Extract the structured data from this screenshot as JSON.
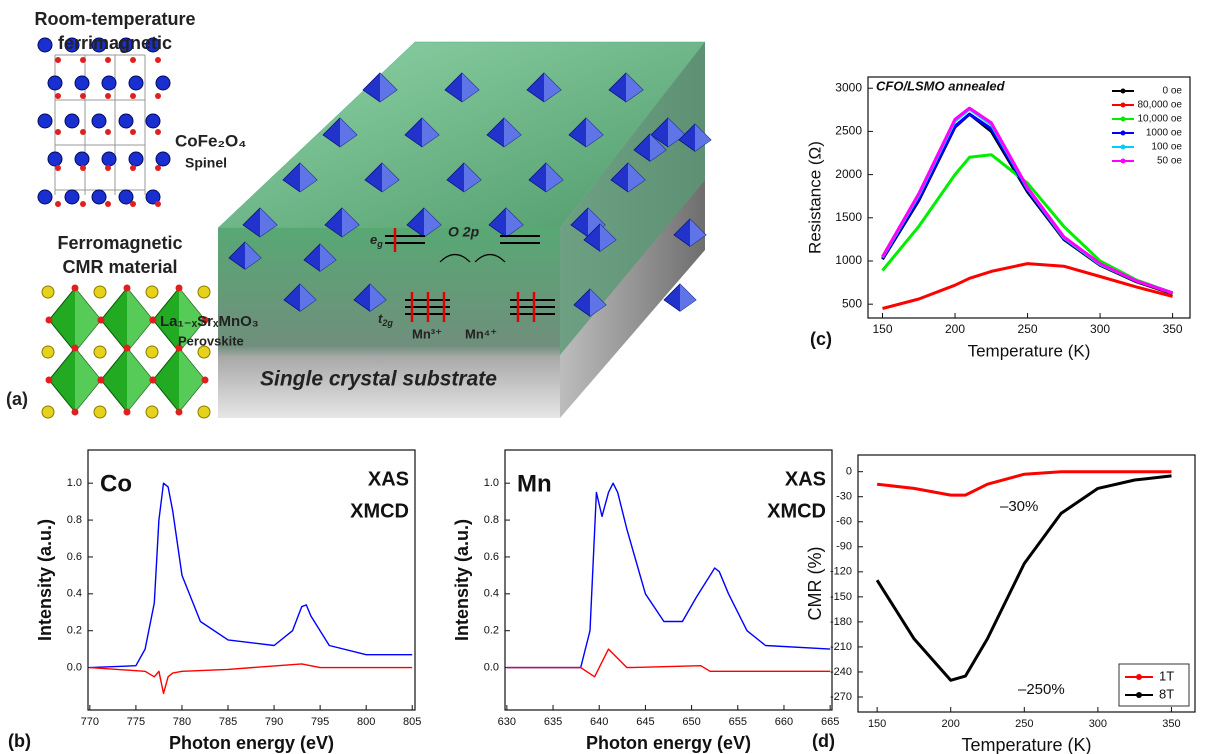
{
  "diagram": {
    "panel_label": "(a)",
    "spinel": {
      "title": [
        "Room-temperature",
        "ferrimagnetic"
      ],
      "formula": "CoFe₂O₄",
      "name": "Spinel"
    },
    "perovskite": {
      "title": [
        "Ferromagnetic",
        "CMR material"
      ],
      "formula": "La₁₋ₓSrₓMnO₃",
      "name": "Perovskite"
    },
    "substrate": "Single crystal substrate",
    "band": {
      "eg": [
        "e",
        "g"
      ],
      "t2g": [
        "t",
        "2g"
      ],
      "o2p": "O 2p",
      "mn3": "Mn³⁺",
      "mn4": "Mn⁴⁺"
    }
  },
  "chart_data": [
    {
      "type": "line",
      "panel_label": "(b)",
      "annotations": [
        "Co"
      ],
      "x_label": "Photon energy (eV)",
      "y_label": "Intensity (a.u.)",
      "xlim": [
        769.8,
        805.3
      ],
      "ylim": [
        -0.23,
        1.18
      ],
      "xticks": [
        770,
        775,
        780,
        785,
        790,
        795,
        800,
        805
      ],
      "yticks": [
        {
          "value": 0,
          "label": "0.0"
        },
        0.2,
        0.4,
        0.6,
        0.8,
        {
          "value": 1,
          "label": "1.0"
        }
      ],
      "legend": "upper right",
      "series": [
        {
          "name": "XAS",
          "color": "#0000ff",
          "x": [
            770,
            775,
            776,
            777,
            777.5,
            778,
            778.5,
            779,
            780,
            782,
            785,
            790,
            792,
            793,
            793.5,
            794,
            796,
            800,
            805
          ],
          "values": [
            0,
            0.01,
            0.1,
            0.35,
            0.8,
            1.0,
            0.98,
            0.85,
            0.5,
            0.25,
            0.15,
            0.12,
            0.2,
            0.33,
            0.34,
            0.28,
            0.12,
            0.07,
            0.07
          ]
        },
        {
          "name": "XMCD",
          "color": "#ff0000",
          "x": [
            770,
            776,
            777,
            777.5,
            778,
            778.5,
            779,
            780,
            785,
            793,
            795,
            805
          ],
          "values": [
            0,
            -0.02,
            -0.05,
            -0.02,
            -0.14,
            -0.05,
            -0.03,
            -0.02,
            -0.01,
            0.02,
            0,
            0
          ]
        }
      ]
    },
    {
      "type": "line",
      "annotations": [
        "Mn"
      ],
      "x_label": "Photon energy (eV)",
      "y_label": "Intensity (a.u.)",
      "xlim": [
        629.8,
        665.2
      ],
      "ylim": [
        -0.23,
        1.18
      ],
      "xticks": [
        630,
        635,
        640,
        645,
        650,
        655,
        660,
        665
      ],
      "yticks": [
        {
          "value": 0,
          "label": "0.0"
        },
        0.2,
        0.4,
        0.6,
        0.8,
        {
          "value": 1,
          "label": "1.0"
        }
      ],
      "legend": "upper right",
      "series": [
        {
          "name": "XAS",
          "color": "#0000ff",
          "x": [
            630,
            638,
            639,
            639.7,
            640.3,
            641,
            641.5,
            642,
            643,
            645,
            647,
            649,
            650.5,
            651,
            652,
            652.5,
            653,
            654,
            656,
            658,
            665
          ],
          "values": [
            0,
            0,
            0.2,
            0.95,
            0.82,
            0.95,
            1.0,
            0.95,
            0.75,
            0.4,
            0.25,
            0.25,
            0.38,
            0.42,
            0.5,
            0.54,
            0.52,
            0.4,
            0.2,
            0.12,
            0.1
          ]
        },
        {
          "name": "XMCD",
          "color": "#ff0000",
          "x": [
            630,
            638,
            639.5,
            640,
            641,
            642,
            643,
            651,
            652,
            665
          ],
          "values": [
            0,
            0,
            -0.05,
            0,
            0.1,
            0.05,
            0,
            0.01,
            -0.02,
            -0.02
          ]
        }
      ]
    },
    {
      "type": "line",
      "panel_label": "(c)",
      "annotations": [
        "CFO/LSMO annealed"
      ],
      "x_label": "Temperature (K)",
      "y_label": "Resistance (Ω)",
      "xlim": [
        140,
        362
      ],
      "ylim": [
        340,
        3130
      ],
      "xticks": [
        150,
        200,
        250,
        300,
        350
      ],
      "yticks": [
        500,
        1000,
        1500,
        2000,
        2500,
        3000
      ],
      "legend": "upper right",
      "x": [
        150,
        175,
        200,
        210,
        225,
        250,
        275,
        300,
        325,
        350
      ],
      "series": [
        {
          "name": "0 oe",
          "color": "#000000",
          "values": [
            1020,
            1700,
            2550,
            2700,
            2500,
            1800,
            1250,
            950,
            760,
            620
          ]
        },
        {
          "name": "80,000 oe",
          "color": "#ff0000",
          "values": [
            450,
            560,
            720,
            800,
            880,
            970,
            940,
            820,
            700,
            590
          ]
        },
        {
          "name": "10,000 oe",
          "color": "#00ee00",
          "values": [
            890,
            1400,
            2000,
            2200,
            2230,
            1900,
            1400,
            1000,
            780,
            630
          ]
        },
        {
          "name": "1000 oe",
          "color": "#0000ff",
          "values": [
            1030,
            1720,
            2560,
            2700,
            2530,
            1820,
            1260,
            960,
            770,
            630
          ]
        },
        {
          "name": "100 oe",
          "color": "#00ccff",
          "values": [
            1040,
            1760,
            2620,
            2760,
            2580,
            1840,
            1270,
            960,
            770,
            630
          ]
        },
        {
          "name": "50 oe",
          "color": "#ff00ff",
          "values": [
            1050,
            1780,
            2640,
            2770,
            2600,
            1850,
            1280,
            970,
            770,
            630
          ]
        }
      ]
    },
    {
      "type": "line",
      "panel_label": "(d)",
      "annotations": [
        "–30%",
        "–250%"
      ],
      "x_label": "Temperature (K)",
      "y_label": "CMR (%)",
      "xlim": [
        137,
        366
      ],
      "ylim": [
        -288,
        20
      ],
      "xticks": [
        150,
        200,
        250,
        300,
        350
      ],
      "yticks": [
        0,
        -30,
        -60,
        -90,
        -120,
        -150,
        -180,
        -210,
        -240,
        -270
      ],
      "legend": "lower right",
      "x": [
        150,
        175,
        200,
        210,
        225,
        250,
        275,
        300,
        325,
        350
      ],
      "series": [
        {
          "name": "1T",
          "color": "#ff0000",
          "values": [
            -15,
            -20,
            -28,
            -28,
            -15,
            -3,
            0,
            0,
            0,
            0
          ]
        },
        {
          "name": "8T",
          "color": "#000000",
          "values": [
            -130,
            -200,
            -250,
            -245,
            -200,
            -110,
            -50,
            -20,
            -10,
            -5
          ]
        }
      ]
    }
  ]
}
